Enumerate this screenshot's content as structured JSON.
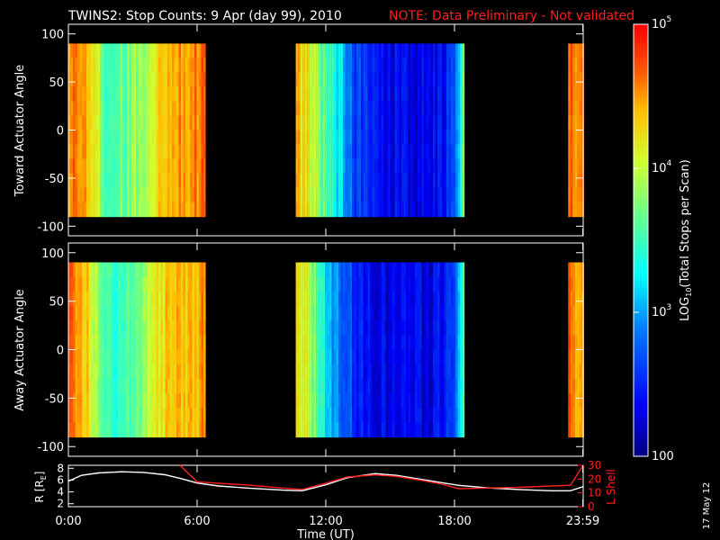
{
  "header": {
    "title": "TWINS2: Stop Counts:  9 Apr (day  99), 2010",
    "note": "NOTE: Data Preliminary - Not validated"
  },
  "date_stamp": "17 May 12",
  "colors": {
    "background": "#000000",
    "axis": "#ffffff",
    "note": "#ff1f1f",
    "radius_line": "#ffffff",
    "lshell_line": "#ff1f1f"
  },
  "chart_data": [
    {
      "type": "heatmap",
      "panel": "toward",
      "title": "",
      "ylabel": "Toward Actuator Angle",
      "xlim": [
        0,
        24
      ],
      "ylim": [
        -110,
        110
      ],
      "yticks": [
        -100,
        -50,
        0,
        50,
        100
      ],
      "y_extent": [
        -90,
        90
      ],
      "coverage_hours": [
        [
          0,
          6.3
        ],
        [
          10.6,
          18.4
        ],
        [
          23.3,
          24
        ]
      ],
      "log10_counts_profile": [
        {
          "t": 0.0,
          "v": 4.6
        },
        {
          "t": 0.8,
          "v": 4.5
        },
        {
          "t": 1.2,
          "v": 4.1
        },
        {
          "t": 1.8,
          "v": 3.5
        },
        {
          "t": 2.6,
          "v": 3.7
        },
        {
          "t": 3.4,
          "v": 3.9
        },
        {
          "t": 4.2,
          "v": 4.3
        },
        {
          "t": 5.2,
          "v": 4.5
        },
        {
          "t": 6.3,
          "v": 4.6
        },
        {
          "t": 10.6,
          "v": 4.4
        },
        {
          "t": 11.2,
          "v": 4.1
        },
        {
          "t": 11.8,
          "v": 3.6
        },
        {
          "t": 12.6,
          "v": 3.2
        },
        {
          "t": 13.4,
          "v": 2.6
        },
        {
          "t": 14.5,
          "v": 2.4
        },
        {
          "t": 16.0,
          "v": 2.3
        },
        {
          "t": 17.5,
          "v": 2.4
        },
        {
          "t": 18.2,
          "v": 3.0
        },
        {
          "t": 18.4,
          "v": 3.8
        },
        {
          "t": 23.3,
          "v": 4.6
        },
        {
          "t": 24.0,
          "v": 4.5
        }
      ]
    },
    {
      "type": "heatmap",
      "panel": "away",
      "title": "",
      "ylabel": "Away Actuator Angle",
      "xlim": [
        0,
        24
      ],
      "ylim": [
        -110,
        110
      ],
      "yticks": [
        -100,
        -50,
        0,
        50,
        100
      ],
      "y_extent": [
        -90,
        90
      ],
      "coverage_hours": [
        [
          0,
          6.3
        ],
        [
          10.6,
          18.4
        ],
        [
          23.3,
          24
        ]
      ],
      "log10_counts_profile": [
        {
          "t": 0.0,
          "v": 4.6
        },
        {
          "t": 0.8,
          "v": 4.4
        },
        {
          "t": 1.3,
          "v": 3.8
        },
        {
          "t": 2.0,
          "v": 3.4
        },
        {
          "t": 2.8,
          "v": 3.6
        },
        {
          "t": 3.6,
          "v": 3.9
        },
        {
          "t": 4.5,
          "v": 4.3
        },
        {
          "t": 5.4,
          "v": 4.4
        },
        {
          "t": 6.3,
          "v": 4.5
        },
        {
          "t": 10.6,
          "v": 4.3
        },
        {
          "t": 11.2,
          "v": 3.9
        },
        {
          "t": 11.8,
          "v": 3.3
        },
        {
          "t": 12.6,
          "v": 2.9
        },
        {
          "t": 13.4,
          "v": 2.5
        },
        {
          "t": 14.5,
          "v": 2.3
        },
        {
          "t": 16.0,
          "v": 2.3
        },
        {
          "t": 17.5,
          "v": 2.4
        },
        {
          "t": 18.2,
          "v": 3.0
        },
        {
          "t": 18.4,
          "v": 3.8
        },
        {
          "t": 23.3,
          "v": 4.6
        },
        {
          "t": 24.0,
          "v": 4.4
        }
      ]
    },
    {
      "type": "line",
      "panel": "orbit",
      "title": "",
      "xlabel": "Time (UT)",
      "xlim": [
        0,
        24
      ],
      "xtick_values": [
        0,
        6,
        12,
        18,
        23.983
      ],
      "xticks": [
        "0:00",
        "6:00",
        "12:00",
        "18:00",
        "23:59"
      ],
      "left_axis": {
        "label": "R [R",
        "label_sub": "E",
        "label_end": "]",
        "ylim": [
          1.5,
          8.5
        ],
        "ticks": [
          "8",
          "6",
          "4",
          "2"
        ],
        "tick_values": [
          8,
          6,
          4,
          2
        ]
      },
      "right_axis": {
        "label": "L Shell",
        "ylim": [
          0,
          30
        ],
        "ticks": [
          "30",
          "20",
          "10",
          "0"
        ],
        "tick_values": [
          30,
          20,
          10,
          0
        ]
      },
      "series": [
        {
          "axis": "left",
          "x": [
            0,
            0.6,
            1.4,
            2.5,
            3.5,
            4.5,
            5.3,
            6.0,
            7,
            8.5,
            10,
            10.9,
            12,
            13,
            14.3,
            15.3,
            16.5,
            17.5,
            18.2,
            19.5,
            21,
            22.5,
            23.4,
            24
          ],
          "y": [
            5.8,
            6.8,
            7.2,
            7.4,
            7.3,
            6.9,
            6.2,
            5.5,
            5.0,
            4.6,
            4.3,
            4.2,
            5.2,
            6.4,
            7.1,
            6.8,
            6.1,
            5.5,
            5.1,
            4.7,
            4.4,
            4.2,
            4.2,
            4.9
          ]
        },
        {
          "axis": "right",
          "x": [
            5.2,
            6.0,
            7,
            8.5,
            10,
            10.9,
            12,
            13,
            14.3,
            15.3,
            16.5,
            17.5,
            18.2,
            19.5,
            21,
            22.5,
            23.4,
            24
          ],
          "y": [
            30,
            18,
            17,
            15.5,
            13.5,
            12.5,
            17,
            21.5,
            23,
            22,
            19,
            16,
            13,
            13.5,
            14,
            15,
            15.5,
            30
          ]
        }
      ]
    }
  ],
  "colorbar": {
    "label": "LOG",
    "label_sub": "10",
    "label_rest": "(Total Stops per Scan)",
    "log10_range": [
      2,
      5
    ],
    "ticks": [
      {
        "base": "10",
        "exp": "5",
        "value": 5
      },
      {
        "base": "10",
        "exp": "4",
        "value": 4
      },
      {
        "base": "10",
        "exp": "3",
        "value": 3
      },
      {
        "base": "100",
        "exp": "",
        "value": 2
      }
    ]
  }
}
